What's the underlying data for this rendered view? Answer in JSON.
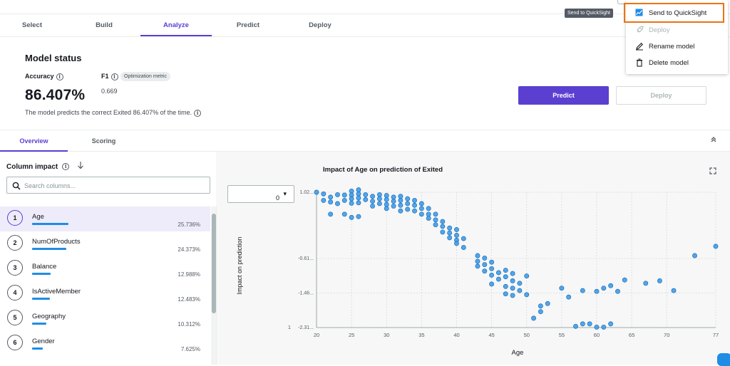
{
  "tabs": [
    "Select",
    "Build",
    "Analyze",
    "Predict",
    "Deploy"
  ],
  "active_tab": "Analyze",
  "model_status": {
    "heading": "Model status",
    "accuracy_label": "Accuracy",
    "accuracy_value": "86.407%",
    "f1_label": "F1",
    "f1_value": "0.669",
    "optimization_badge": "Optimization metric",
    "description": "The model predicts the correct Exited 86.407% of the time."
  },
  "actions": {
    "predict": "Predict",
    "deploy": "Deploy"
  },
  "subtabs": [
    "Overview",
    "Scoring"
  ],
  "column_impact": {
    "title": "Column impact",
    "search_placeholder": "Search columns...",
    "items": [
      {
        "rank": "1",
        "name": "Age",
        "pct": "25.736%",
        "share": 25.736
      },
      {
        "rank": "2",
        "name": "NumOfProducts",
        "pct": "24.373%",
        "share": 24.373
      },
      {
        "rank": "3",
        "name": "Balance",
        "pct": "12.988%",
        "share": 12.988
      },
      {
        "rank": "4",
        "name": "IsActiveMember",
        "pct": "12.483%",
        "share": 12.483
      },
      {
        "rank": "5",
        "name": "Geography",
        "pct": "10.312%",
        "share": 10.312
      },
      {
        "rank": "6",
        "name": "Gender",
        "pct": "7.625%",
        "share": 7.625
      }
    ]
  },
  "chart_panel": {
    "class_select_value": "0"
  },
  "menu": {
    "tooltip": "Send to QuickSight",
    "items": [
      "Send to QuickSight",
      "Deploy",
      "Rename model",
      "Delete model"
    ]
  },
  "colors": {
    "accent": "#5a3fd1",
    "point": "#3f9be8",
    "highlight_border": "#ec7211"
  },
  "chart_data": {
    "type": "scatter",
    "title": "Impact of Age on prediction of Exited",
    "xlabel": "Age",
    "ylabel": "Impact on prediction",
    "xlim": [
      20,
      77
    ],
    "ylim": [
      -2.31,
      1.02
    ],
    "x_ticks": [
      "20",
      "25",
      "30",
      "35",
      "40",
      "45",
      "50",
      "55",
      "60",
      "65",
      "70",
      "77"
    ],
    "y_ticks": [
      "1.02...",
      "-0.61...",
      "-1.46...",
      "-2.31..."
    ],
    "y_tick_values": [
      1.02,
      -0.61,
      -1.46,
      -2.31
    ],
    "y_extra_label": "1",
    "grid": true,
    "points": [
      [
        20,
        1.02
      ],
      [
        21,
        0.98
      ],
      [
        22,
        0.9
      ],
      [
        22,
        0.78
      ],
      [
        23,
        0.96
      ],
      [
        23,
        0.74
      ],
      [
        24,
        0.95
      ],
      [
        24,
        0.82
      ],
      [
        24,
        0.48
      ],
      [
        21,
        0.82
      ],
      [
        22,
        0.48
      ],
      [
        25,
        1.05
      ],
      [
        25,
        0.95
      ],
      [
        25,
        0.86
      ],
      [
        25,
        0.75
      ],
      [
        26,
        1.08
      ],
      [
        26,
        0.98
      ],
      [
        26,
        0.88
      ],
      [
        26,
        0.76
      ],
      [
        26,
        0.42
      ],
      [
        25,
        0.4
      ],
      [
        27,
        0.96
      ],
      [
        27,
        0.84
      ],
      [
        28,
        0.92
      ],
      [
        28,
        0.8
      ],
      [
        28,
        0.68
      ],
      [
        29,
        0.96
      ],
      [
        29,
        0.86
      ],
      [
        29,
        0.74
      ],
      [
        30,
        0.94
      ],
      [
        30,
        0.84
      ],
      [
        30,
        0.72
      ],
      [
        30,
        0.62
      ],
      [
        31,
        0.9
      ],
      [
        31,
        0.8
      ],
      [
        31,
        0.68
      ],
      [
        32,
        0.92
      ],
      [
        32,
        0.82
      ],
      [
        32,
        0.7
      ],
      [
        32,
        0.56
      ],
      [
        33,
        0.86
      ],
      [
        33,
        0.74
      ],
      [
        33,
        0.6
      ],
      [
        34,
        0.82
      ],
      [
        34,
        0.7
      ],
      [
        34,
        0.56
      ],
      [
        35,
        0.74
      ],
      [
        35,
        0.62
      ],
      [
        35,
        0.48
      ],
      [
        36,
        0.62
      ],
      [
        36,
        0.48
      ],
      [
        36,
        0.38
      ],
      [
        37,
        0.48
      ],
      [
        37,
        0.34
      ],
      [
        37,
        0.22
      ],
      [
        38,
        0.3
      ],
      [
        38,
        0.18
      ],
      [
        38,
        0.04
      ],
      [
        39,
        0.14
      ],
      [
        39,
        0.02
      ],
      [
        39,
        -0.1
      ],
      [
        40,
        0.1
      ],
      [
        40,
        -0.04
      ],
      [
        40,
        -0.16
      ],
      [
        40,
        -0.24
      ],
      [
        41,
        -0.12
      ],
      [
        41,
        -0.34
      ],
      [
        43,
        -0.54
      ],
      [
        43,
        -0.68
      ],
      [
        43,
        -0.8
      ],
      [
        44,
        -0.6
      ],
      [
        44,
        -0.76
      ],
      [
        44,
        -0.92
      ],
      [
        45,
        -0.7
      ],
      [
        45,
        -0.86
      ],
      [
        45,
        -1.02
      ],
      [
        45,
        -1.24
      ],
      [
        46,
        -0.96
      ],
      [
        46,
        -1.12
      ],
      [
        47,
        -0.9
      ],
      [
        47,
        -1.06
      ],
      [
        47,
        -1.3
      ],
      [
        47,
        -1.48
      ],
      [
        48,
        -0.98
      ],
      [
        48,
        -1.16
      ],
      [
        48,
        -1.34
      ],
      [
        48,
        -1.52
      ],
      [
        49,
        -1.22
      ],
      [
        49,
        -1.4
      ],
      [
        50,
        -1.04
      ],
      [
        50,
        -1.5
      ],
      [
        51,
        -2.08
      ],
      [
        52,
        -1.78
      ],
      [
        52,
        -1.92
      ],
      [
        53,
        -1.72
      ],
      [
        55,
        -1.34
      ],
      [
        56,
        -1.56
      ],
      [
        58,
        -1.4
      ],
      [
        57,
        -2.28
      ],
      [
        58,
        -2.22
      ],
      [
        59,
        -2.22
      ],
      [
        60,
        -2.3
      ],
      [
        61,
        -2.3
      ],
      [
        62,
        -2.22
      ],
      [
        60,
        -1.42
      ],
      [
        61,
        -1.34
      ],
      [
        62,
        -1.28
      ],
      [
        63,
        -1.42
      ],
      [
        64,
        -1.14
      ],
      [
        67,
        -1.22
      ],
      [
        69,
        -1.16
      ],
      [
        71,
        -1.4
      ],
      [
        74,
        -0.54
      ],
      [
        77,
        -0.31
      ]
    ]
  }
}
